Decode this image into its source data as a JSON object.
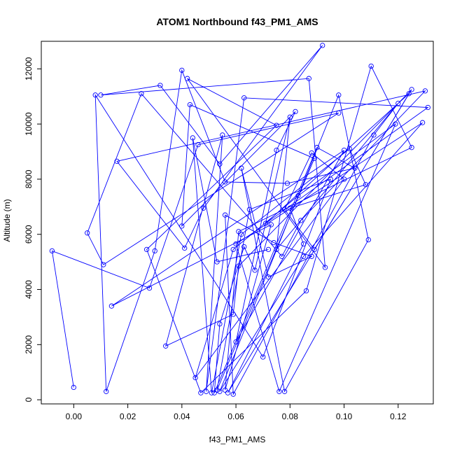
{
  "chart_data": {
    "type": "line",
    "title": "ATOM1 Northbound f43_PM1_AMS",
    "xlabel": "f43_PM1_AMS",
    "ylabel": "Altitude (m)",
    "xlim": [
      -0.012,
      0.133
    ],
    "ylim": [
      -150,
      13000
    ],
    "xticks": [
      0.0,
      0.02,
      0.04,
      0.06,
      0.08,
      0.1,
      0.12
    ],
    "xtick_labels": [
      "0.00",
      "0.02",
      "0.04",
      "0.06",
      "0.08",
      "0.10",
      "0.12"
    ],
    "yticks": [
      0,
      2000,
      4000,
      6000,
      8000,
      10000,
      12000
    ],
    "ytick_labels": [
      "0",
      "2000",
      "4000",
      "6000",
      "8000",
      "10000",
      "12000"
    ],
    "grid": false,
    "legend": "none",
    "series": [
      {
        "color": "#0000ff",
        "marker": "open-circle",
        "x": [
          0.0,
          -0.008,
          0.028,
          0.046,
          0.098,
          0.011,
          0.005,
          0.025,
          0.077,
          0.084,
          0.13,
          0.016,
          0.041,
          0.048,
          0.092,
          0.054,
          0.032,
          0.01,
          0.087,
          0.093,
          0.042,
          0.075,
          0.027,
          0.047,
          0.086,
          0.11,
          0.125,
          0.061,
          0.056,
          0.073,
          0.014,
          0.1,
          0.06,
          0.075,
          0.082,
          0.04,
          0.043,
          0.089,
          0.053,
          0.065,
          0.095,
          0.07,
          0.008,
          0.012,
          0.03,
          0.04,
          0.056,
          0.079,
          0.104,
          0.09,
          0.052,
          0.054,
          0.063,
          0.067,
          0.08,
          0.075,
          0.12,
          0.111,
          0.059,
          0.056,
          0.074,
          0.088,
          0.072,
          0.062,
          0.078,
          0.109,
          0.098,
          0.054,
          0.085,
          0.129,
          0.06,
          0.076,
          0.119,
          0.083,
          0.059,
          0.045,
          0.1,
          0.088,
          0.078,
          0.089,
          0.125,
          0.061,
          0.059,
          0.034,
          0.055,
          0.049,
          0.063,
          0.131,
          0.071,
          0.124,
          0.057,
          0.085,
          0.08,
          0.108,
          0.102,
          0.062,
          0.051,
          0.044,
          0.053,
          0.072
        ],
        "y": [
          450,
          5400,
          4050,
          9250,
          10400,
          4900,
          6050,
          11100,
          5200,
          6500,
          11200,
          8650,
          5500,
          6950,
          12850,
          8550,
          11400,
          11050,
          11650,
          4800,
          11650,
          9950,
          5450,
          250,
          3950,
          12100,
          9150,
          6100,
          350,
          6350,
          3400,
          9050,
          2100,
          9050,
          10450,
          6300,
          10700,
          8750,
          350,
          6900,
          8000,
          1550,
          11050,
          300,
          5400,
          11950,
          7900,
          7850,
          8400,
          9150,
          250,
          2750,
          5550,
          4700,
          10250,
          5450,
          10750,
          9600,
          200,
          6700,
          5700,
          5200,
          4450,
          8400,
          300,
          5800,
          11050,
          300,
          5200,
          10050,
          5650,
          300,
          10000,
          7400,
          5450,
          800,
          8000,
          8950,
          6900,
          5450,
          11250,
          4850,
          3100,
          1950,
          9600,
          300,
          10950,
          10600,
          6400,
          11100,
          250,
          5650,
          6950,
          7800,
          9100,
          6000,
          250,
          9500,
          5000,
          5450
        ]
      }
    ]
  }
}
